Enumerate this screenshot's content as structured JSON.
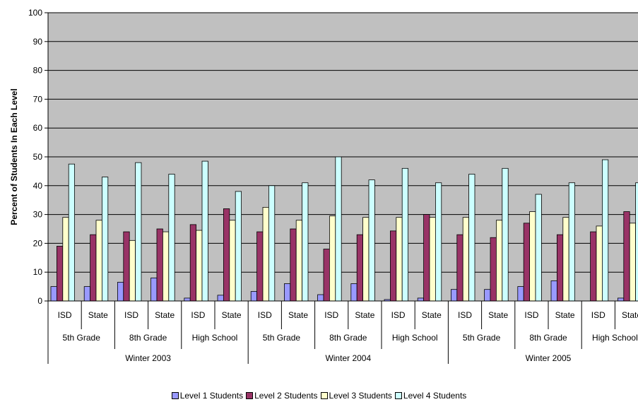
{
  "chart_data": {
    "type": "bar",
    "title": "",
    "xlabel": "",
    "ylabel": "Percent of Students In Each Level",
    "ylim": [
      0,
      100
    ],
    "yticks": [
      0,
      10,
      20,
      30,
      40,
      50,
      60,
      70,
      80,
      90,
      100
    ],
    "grid": true,
    "legend_position": "bottom",
    "plot_background": "#C0C0C0",
    "categories": [
      "ISD",
      "State",
      "ISD",
      "State",
      "ISD",
      "State",
      "ISD",
      "State",
      "ISD",
      "State",
      "ISD",
      "State",
      "ISD",
      "State",
      "ISD",
      "State",
      "ISD",
      "State"
    ],
    "grades": [
      "5th Grade",
      "8th Grade",
      "High School",
      "5th Grade",
      "8th Grade",
      "High School",
      "5th Grade",
      "8th Grade",
      "High School"
    ],
    "periods": [
      "Winter 2003",
      "Winter 2004",
      "Winter 2005"
    ],
    "series": [
      {
        "name": "Level 1 Students",
        "color": "#9999FF",
        "values": [
          5,
          5,
          6.5,
          8,
          1,
          2,
          3.3,
          6,
          2.2,
          6,
          0.5,
          1,
          4,
          4,
          5,
          7,
          0,
          1
        ]
      },
      {
        "name": "Level 2 Students",
        "color": "#993366",
        "values": [
          19,
          23,
          24,
          25,
          26.5,
          32,
          24,
          25,
          18,
          23,
          24.3,
          30,
          23,
          22,
          27,
          23,
          24,
          31
        ]
      },
      {
        "name": "Level 3 Students",
        "color": "#FFFFCC",
        "values": [
          29,
          28,
          21,
          24,
          24.5,
          28,
          32.5,
          28,
          29.5,
          29,
          29,
          29,
          29,
          28,
          31,
          29,
          26,
          27
        ]
      },
      {
        "name": "Level 4 Students",
        "color": "#CCFFFF",
        "values": [
          47.5,
          43,
          48,
          44,
          48.5,
          38,
          40,
          41,
          50,
          42,
          46,
          41,
          44,
          46,
          37,
          41,
          49,
          41
        ]
      }
    ]
  }
}
